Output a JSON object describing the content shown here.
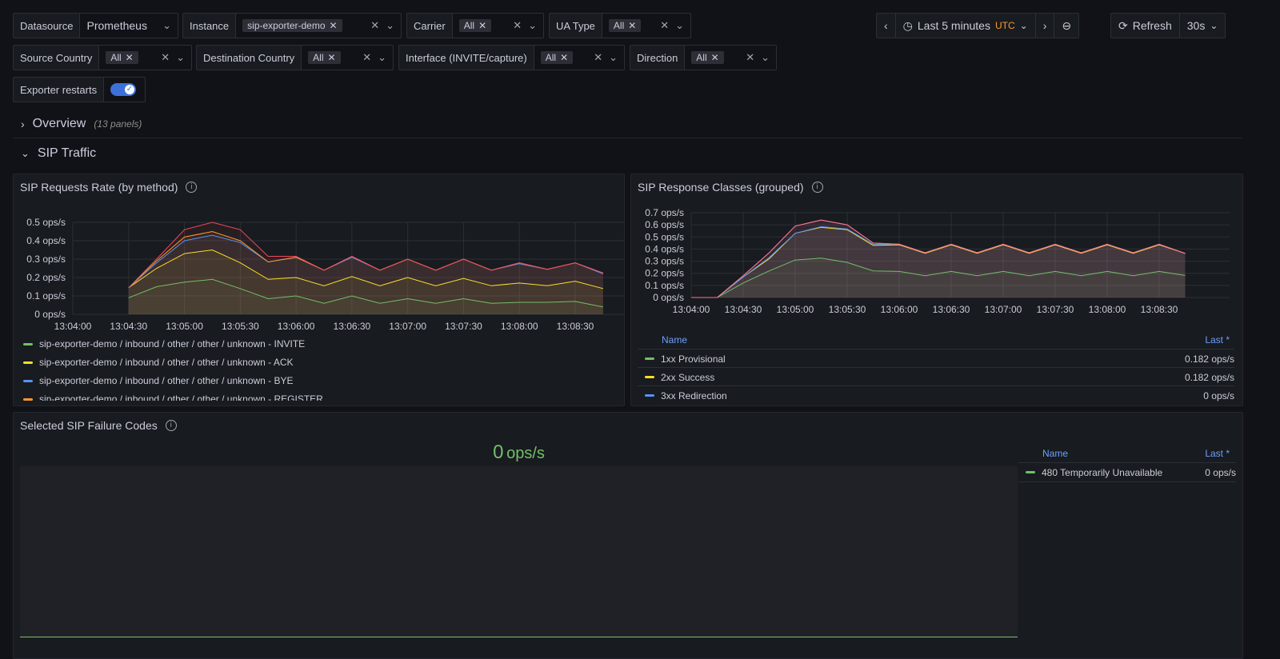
{
  "variables": {
    "datasource": {
      "label": "Datasource",
      "value": "Prometheus"
    },
    "instance": {
      "label": "Instance",
      "value": "sip-exporter-demo"
    },
    "carrier": {
      "label": "Carrier",
      "value": "All"
    },
    "ua_type": {
      "label": "UA Type",
      "value": "All"
    },
    "source_country": {
      "label": "Source Country",
      "value": "All"
    },
    "destination_country": {
      "label": "Destination Country",
      "value": "All"
    },
    "interface": {
      "label": "Interface (INVITE/capture)",
      "value": "All"
    },
    "direction": {
      "label": "Direction",
      "value": "All"
    },
    "exporter_restarts": {
      "label": "Exporter restarts",
      "enabled": true
    }
  },
  "time_controls": {
    "range": "Last 5 minutes",
    "timezone": "UTC",
    "refresh_label": "Refresh",
    "refresh_interval": "30s"
  },
  "rows": {
    "overview": {
      "title": "Overview",
      "sub": "(13 panels)"
    },
    "sip_traffic": {
      "title": "SIP Traffic"
    }
  },
  "panels": {
    "requests": {
      "title": "SIP Requests Rate (by method)",
      "legend": [
        {
          "label": "sip-exporter-demo / inbound / other / other / unknown - INVITE",
          "color": "#73bf69"
        },
        {
          "label": "sip-exporter-demo / inbound / other / other / unknown - ACK",
          "color": "#fade2a"
        },
        {
          "label": "sip-exporter-demo / inbound / other / other / unknown - BYE",
          "color": "#5794f2"
        },
        {
          "label": "sip-exporter-demo / inbound / other / other / unknown - REGISTER",
          "color": "#ff9830"
        }
      ]
    },
    "responses": {
      "title": "SIP Response Classes (grouped)",
      "legend_name": "Name",
      "legend_last": "Last *",
      "legend": [
        {
          "label": "1xx Provisional",
          "value": "0.182 ops/s",
          "color": "#73bf69"
        },
        {
          "label": "2xx Success",
          "value": "0.182 ops/s",
          "color": "#fade2a"
        },
        {
          "label": "3xx Redirection",
          "value": "0 ops/s",
          "color": "#5794f2"
        }
      ]
    },
    "failures": {
      "title": "Selected SIP Failure Codes",
      "big_value": "0",
      "big_unit": "ops/s",
      "legend_name": "Name",
      "legend_last": "Last *",
      "legend": [
        {
          "label": "480 Temporarily Unavailable",
          "value": "0 ops/s",
          "color": "#73bf69"
        }
      ]
    }
  },
  "chart_data": [
    {
      "type": "area",
      "title": "SIP Requests Rate (by method)",
      "unit": "ops/s",
      "ylim": [
        0,
        0.5
      ],
      "yticks": [
        "0 ops/s",
        "0.1 ops/s",
        "0.2 ops/s",
        "0.3 ops/s",
        "0.4 ops/s",
        "0.5 ops/s"
      ],
      "xticks": [
        "13:04:00",
        "13:04:30",
        "13:05:00",
        "13:05:30",
        "13:06:00",
        "13:06:30",
        "13:07:00",
        "13:07:30",
        "13:08:00",
        "13:08:30"
      ],
      "x": [
        "13:04:30",
        "13:04:45",
        "13:05:00",
        "13:05:15",
        "13:05:30",
        "13:05:45",
        "13:06:00",
        "13:06:15",
        "13:06:30",
        "13:06:45",
        "13:07:00",
        "13:07:15",
        "13:07:30",
        "13:07:45",
        "13:08:00",
        "13:08:15",
        "13:08:30",
        "13:08:45"
      ],
      "series": [
        {
          "name": "sip-exporter-demo / inbound / other / other / unknown - INVITE",
          "color": "#73bf69",
          "values": [
            0.09,
            0.15,
            0.175,
            0.19,
            0.14,
            0.085,
            0.1,
            0.06,
            0.1,
            0.06,
            0.085,
            0.06,
            0.085,
            0.06,
            0.065,
            0.065,
            0.07,
            0.04
          ]
        },
        {
          "name": "sip-exporter-demo / inbound / other / other / unknown - ACK",
          "color": "#fade2a",
          "values": [
            0.145,
            0.25,
            0.33,
            0.35,
            0.28,
            0.19,
            0.2,
            0.155,
            0.205,
            0.155,
            0.2,
            0.155,
            0.195,
            0.155,
            0.17,
            0.155,
            0.18,
            0.14
          ]
        },
        {
          "name": "sip-exporter-demo / inbound / other / other / unknown - BYE",
          "color": "#5794f2",
          "values": [
            0.145,
            0.28,
            0.4,
            0.43,
            0.39,
            0.285,
            0.31,
            0.24,
            0.31,
            0.24,
            0.3,
            0.24,
            0.3,
            0.24,
            0.275,
            0.245,
            0.28,
            0.22
          ]
        },
        {
          "name": "sip-exporter-demo / inbound / other / other / unknown - REGISTER",
          "color": "#ff9830",
          "values": [
            0.145,
            0.29,
            0.42,
            0.45,
            0.4,
            0.285,
            0.31,
            0.24,
            0.315,
            0.24,
            0.3,
            0.24,
            0.3,
            0.24,
            0.28,
            0.245,
            0.28,
            0.225
          ]
        },
        {
          "color": "#f2495c",
          "values": [
            0.145,
            0.3,
            0.46,
            0.5,
            0.46,
            0.315,
            0.315,
            0.24,
            0.315,
            0.24,
            0.3,
            0.24,
            0.3,
            0.24,
            0.28,
            0.245,
            0.28,
            0.225
          ]
        }
      ]
    },
    {
      "type": "area",
      "title": "SIP Response Classes (grouped)",
      "unit": "ops/s",
      "ylim": [
        0,
        0.7
      ],
      "yticks": [
        "0 ops/s",
        "0.1 ops/s",
        "0.2 ops/s",
        "0.3 ops/s",
        "0.4 ops/s",
        "0.5 ops/s",
        "0.6 ops/s",
        "0.7 ops/s"
      ],
      "xticks": [
        "13:04:00",
        "13:04:30",
        "13:05:00",
        "13:05:30",
        "13:06:00",
        "13:06:30",
        "13:07:00",
        "13:07:30",
        "13:08:00",
        "13:08:30"
      ],
      "x": [
        "13:04:00",
        "13:04:15",
        "13:04:30",
        "13:04:45",
        "13:05:00",
        "13:05:15",
        "13:05:30",
        "13:05:45",
        "13:06:00",
        "13:06:15",
        "13:06:30",
        "13:06:45",
        "13:07:00",
        "13:07:15",
        "13:07:30",
        "13:07:45",
        "13:08:00",
        "13:08:15",
        "13:08:30",
        "13:08:45"
      ],
      "series": [
        {
          "name": "1xx Provisional",
          "color": "#73bf69",
          "values": [
            0,
            0,
            0.12,
            0.22,
            0.31,
            0.325,
            0.29,
            0.22,
            0.215,
            0.18,
            0.215,
            0.18,
            0.215,
            0.18,
            0.215,
            0.18,
            0.215,
            0.18,
            0.215,
            0.182
          ]
        },
        {
          "name": "2xx Success",
          "color": "#fade2a",
          "values": [
            0,
            0,
            0.17,
            0.32,
            0.53,
            0.58,
            0.56,
            0.43,
            0.435,
            0.365,
            0.435,
            0.365,
            0.435,
            0.365,
            0.435,
            0.365,
            0.435,
            0.365,
            0.435,
            0.364
          ]
        },
        {
          "name": "3xx Redirection",
          "color": "#5794f2",
          "values": [
            0,
            0,
            0.17,
            0.33,
            0.53,
            0.585,
            0.565,
            0.44,
            0.44,
            0.37,
            0.44,
            0.37,
            0.44,
            0.37,
            0.44,
            0.37,
            0.44,
            0.37,
            0.44,
            0.364
          ]
        },
        {
          "color": "#b877d9",
          "values": [
            0,
            0,
            0.18,
            0.37,
            0.59,
            0.64,
            0.6,
            0.45,
            0.44,
            0.37,
            0.44,
            0.37,
            0.44,
            0.37,
            0.44,
            0.37,
            0.44,
            0.37,
            0.44,
            0.364
          ]
        },
        {
          "color": "#ff7383",
          "values": [
            0,
            0,
            0.18,
            0.37,
            0.59,
            0.64,
            0.6,
            0.45,
            0.44,
            0.37,
            0.44,
            0.37,
            0.44,
            0.37,
            0.44,
            0.37,
            0.44,
            0.37,
            0.44,
            0.364
          ]
        }
      ]
    },
    {
      "type": "line",
      "title": "Selected SIP Failure Codes",
      "unit": "ops/s",
      "series": [
        {
          "name": "480 Temporarily Unavailable",
          "color": "#73bf69",
          "values": [
            0,
            0
          ]
        }
      ]
    }
  ]
}
